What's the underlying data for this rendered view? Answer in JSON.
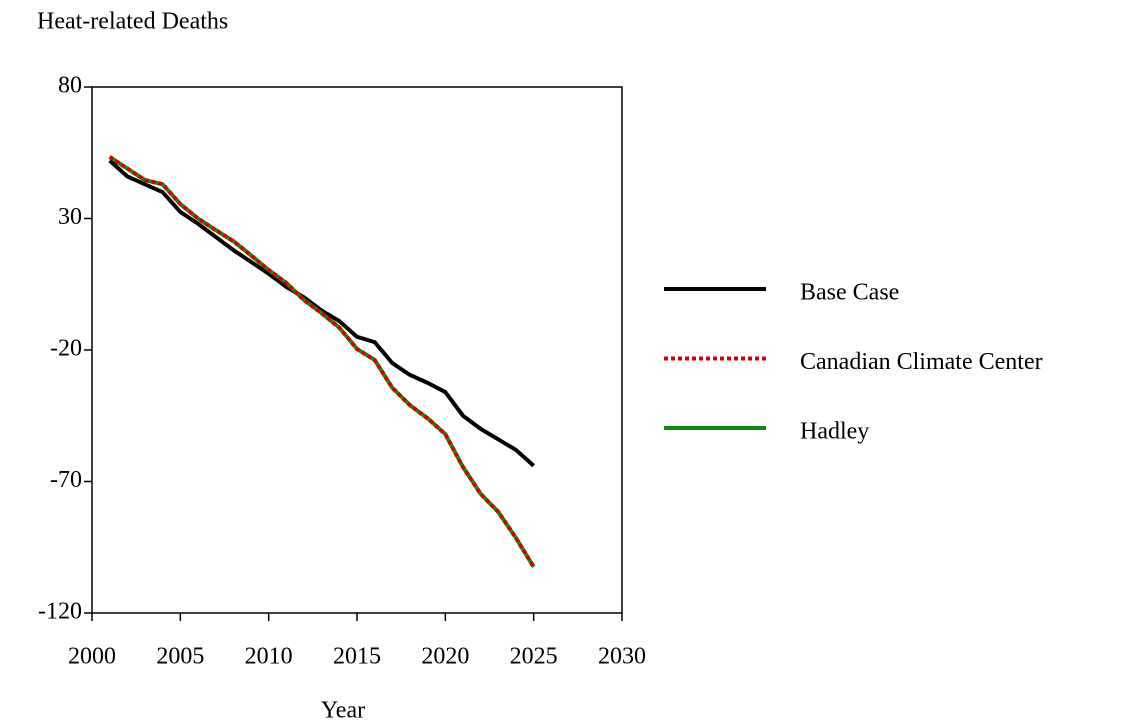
{
  "chart_data": {
    "type": "line",
    "title": "Heat-related Deaths",
    "xlabel": "Year",
    "x": [
      2001,
      2002,
      2003,
      2004,
      2005,
      2006,
      2007,
      2008,
      2009,
      2010,
      2011,
      2012,
      2013,
      2014,
      2015,
      2016,
      2017,
      2018,
      2019,
      2020,
      2021,
      2022,
      2023,
      2024,
      2025
    ],
    "series": [
      {
        "name": "Base Case",
        "color": "#000000",
        "line_style": "solid",
        "values": [
          52,
          46,
          43,
          40,
          32.5,
          28,
          23,
          18,
          13.5,
          9,
          4,
          0,
          -5,
          -9,
          -15,
          -17,
          -25,
          -29.5,
          -32.5,
          -36,
          -45,
          -50,
          -54,
          -58,
          -64
        ]
      },
      {
        "name": "Canadian Climate Center",
        "color": "#d40000",
        "line_style": "dotted",
        "values": [
          53.4,
          49,
          44.6,
          43,
          35.5,
          30,
          25.6,
          21.4,
          16,
          10.4,
          5.5,
          -1,
          -6,
          -11.5,
          -19.6,
          -23.8,
          -34.4,
          -41,
          -46,
          -52,
          -64.5,
          -74.7,
          -81.6,
          -91.5,
          -102.5
        ]
      },
      {
        "name": "Hadley",
        "color": "#128a12",
        "line_style": "solid",
        "values": [
          53.4,
          49,
          44.6,
          43,
          35.5,
          30,
          25.6,
          21.4,
          16,
          10.4,
          5.5,
          -1,
          -6,
          -11.5,
          -19.6,
          -23.8,
          -34.4,
          -41,
          -46,
          -52,
          -64.5,
          -74.7,
          -81.6,
          -91.5,
          -102.5
        ]
      }
    ],
    "xlim": [
      2000,
      2030
    ],
    "xticks": [
      2000,
      2005,
      2010,
      2015,
      2020,
      2025,
      2030
    ],
    "ylim": [
      -120,
      80
    ],
    "yticks": [
      80,
      30,
      -20,
      -70,
      -120
    ],
    "grid": false,
    "legend": "right"
  }
}
